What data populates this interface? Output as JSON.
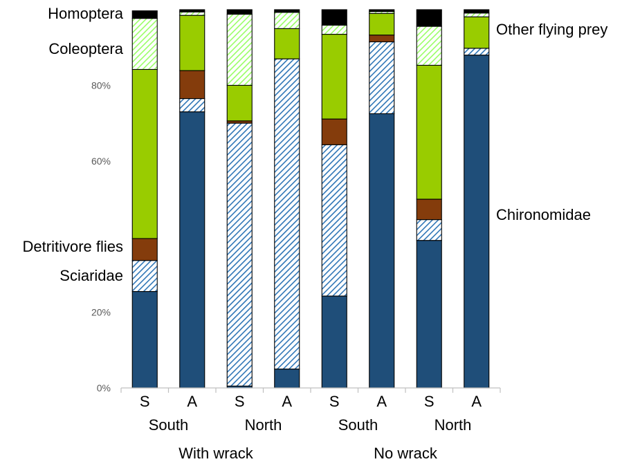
{
  "chart_data": {
    "type": "bar",
    "stacked": true,
    "percent": true,
    "ylim": [
      0,
      100
    ],
    "yticks": [
      "0%",
      "20%",
      "60%",
      "80%"
    ],
    "categories": [
      "S",
      "A",
      "S",
      "A",
      "S",
      "A",
      "S",
      "A"
    ],
    "group_labels": [
      "South",
      "North",
      "South",
      "North"
    ],
    "supergroup_labels": [
      "With wrack",
      "No wrack"
    ],
    "series": [
      {
        "name": "Chironomidae",
        "color": "#1f4e79",
        "pattern": "solid",
        "values": [
          25.5,
          73.0,
          0.5,
          5.0,
          24.3,
          72.5,
          39.0,
          88.0
        ]
      },
      {
        "name": "Sciaridae",
        "color": "#2e75b6",
        "pattern": "hatch",
        "values": [
          8.2,
          3.5,
          69.5,
          82.0,
          40.0,
          19.0,
          5.5,
          1.8
        ]
      },
      {
        "name": "Detritivore flies",
        "color": "#843c0c",
        "pattern": "solid",
        "values": [
          5.8,
          7.4,
          0.6,
          0.0,
          6.8,
          1.8,
          5.4,
          0.0
        ]
      },
      {
        "name": "Other flying prey",
        "color": "#99cc00",
        "pattern": "solid",
        "values": [
          44.7,
          14.6,
          9.4,
          8.0,
          22.4,
          5.7,
          35.4,
          8.3
        ]
      },
      {
        "name": "Coleoptera",
        "color": "#99ff66",
        "pattern": "hatch",
        "values": [
          13.5,
          0.9,
          18.8,
          4.3,
          2.4,
          0.5,
          10.3,
          1.0
        ]
      },
      {
        "name": "Homoptera",
        "color": "#000000",
        "pattern": "solid",
        "values": [
          2.0,
          0.6,
          1.2,
          0.7,
          4.1,
          0.5,
          4.4,
          0.9
        ]
      }
    ]
  }
}
